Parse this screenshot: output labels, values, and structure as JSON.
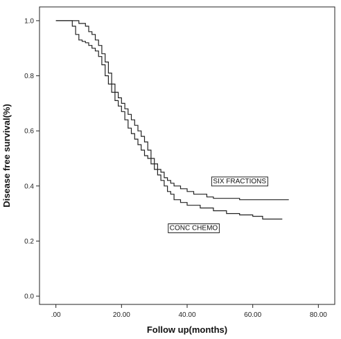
{
  "chart_data": {
    "type": "line",
    "xlabel": "Follow up(months)",
    "ylabel": "Disease free survival(%)",
    "xlim": [
      -5,
      85
    ],
    "ylim": [
      -0.03,
      1.05
    ],
    "x_ticks": [
      0,
      20,
      40,
      60,
      80
    ],
    "x_tick_labels": [
      ".00",
      "20.00",
      "40.00",
      "60.00",
      "80.00"
    ],
    "y_ticks": [
      0.0,
      0.2,
      0.4,
      0.6,
      0.8,
      1.0
    ],
    "y_tick_labels": [
      "0.0",
      "0.2",
      "0.4",
      "0.6",
      "0.8",
      "1.0"
    ],
    "grid": false,
    "series": [
      {
        "name": "SIX FRACTIONS",
        "color": "#222222",
        "points": [
          [
            0,
            1.0
          ],
          [
            6,
            1.0
          ],
          [
            7,
            0.99
          ],
          [
            9,
            0.98
          ],
          [
            10,
            0.96
          ],
          [
            11,
            0.95
          ],
          [
            12,
            0.93
          ],
          [
            13,
            0.91
          ],
          [
            14,
            0.88
          ],
          [
            15,
            0.85
          ],
          [
            16,
            0.81
          ],
          [
            17,
            0.77
          ],
          [
            18,
            0.74
          ],
          [
            19,
            0.72
          ],
          [
            20,
            0.7
          ],
          [
            21,
            0.68
          ],
          [
            22,
            0.66
          ],
          [
            23,
            0.64
          ],
          [
            24,
            0.62
          ],
          [
            25,
            0.6
          ],
          [
            26,
            0.58
          ],
          [
            27,
            0.56
          ],
          [
            28,
            0.53
          ],
          [
            29,
            0.5
          ],
          [
            30,
            0.48
          ],
          [
            31,
            0.46
          ],
          [
            32,
            0.45
          ],
          [
            33,
            0.43
          ],
          [
            34,
            0.42
          ],
          [
            35,
            0.41
          ],
          [
            36,
            0.4
          ],
          [
            38,
            0.39
          ],
          [
            40,
            0.38
          ],
          [
            42,
            0.37
          ],
          [
            44,
            0.37
          ],
          [
            46,
            0.36
          ],
          [
            48,
            0.355
          ],
          [
            52,
            0.355
          ],
          [
            56,
            0.35
          ],
          [
            60,
            0.35
          ],
          [
            65,
            0.35
          ],
          [
            71,
            0.35
          ]
        ]
      },
      {
        "name": "CONC CHEMO",
        "color": "#222222",
        "points": [
          [
            0,
            1.0
          ],
          [
            4,
            1.0
          ],
          [
            5,
            0.98
          ],
          [
            6,
            0.95
          ],
          [
            7,
            0.93
          ],
          [
            8,
            0.925
          ],
          [
            9,
            0.92
          ],
          [
            10,
            0.91
          ],
          [
            11,
            0.9
          ],
          [
            12,
            0.89
          ],
          [
            13,
            0.87
          ],
          [
            14,
            0.84
          ],
          [
            15,
            0.8
          ],
          [
            16,
            0.77
          ],
          [
            17,
            0.74
          ],
          [
            18,
            0.71
          ],
          [
            19,
            0.69
          ],
          [
            20,
            0.67
          ],
          [
            21,
            0.64
          ],
          [
            22,
            0.61
          ],
          [
            23,
            0.59
          ],
          [
            24,
            0.57
          ],
          [
            25,
            0.55
          ],
          [
            26,
            0.53
          ],
          [
            27,
            0.51
          ],
          [
            28,
            0.5
          ],
          [
            29,
            0.48
          ],
          [
            30,
            0.46
          ],
          [
            31,
            0.44
          ],
          [
            32,
            0.42
          ],
          [
            33,
            0.4
          ],
          [
            34,
            0.38
          ],
          [
            35,
            0.37
          ],
          [
            36,
            0.35
          ],
          [
            38,
            0.34
          ],
          [
            40,
            0.33
          ],
          [
            44,
            0.32
          ],
          [
            48,
            0.31
          ],
          [
            52,
            0.3
          ],
          [
            56,
            0.295
          ],
          [
            60,
            0.29
          ],
          [
            63,
            0.28
          ],
          [
            69,
            0.28
          ]
        ]
      }
    ],
    "annotations": [
      {
        "text": "SIX FRACTIONS",
        "x": 56,
        "y": 0.41
      },
      {
        "text": "CONC CHEMO",
        "x": 42,
        "y": 0.24
      }
    ]
  }
}
